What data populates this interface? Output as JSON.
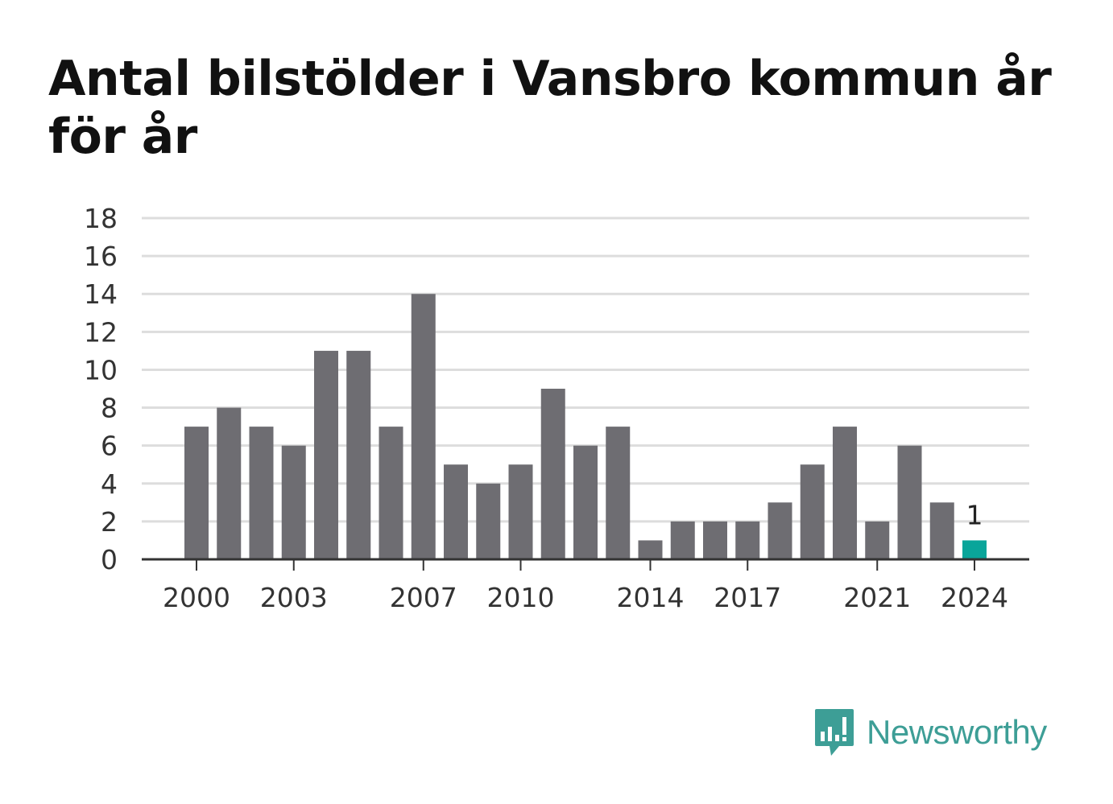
{
  "title": "Antal bilstölder i Vansbro kommun år för år",
  "brand": {
    "name": "Newsworthy",
    "icon": "newsworthy-logo-icon"
  },
  "colors": {
    "bar": "#6e6d72",
    "highlight": "#0aa59a",
    "grid": "#dddddd",
    "axis": "#333333",
    "text": "#333333",
    "brand": "#3d9e96"
  },
  "chart_data": {
    "type": "bar",
    "categories": [
      "2000",
      "2001",
      "2002",
      "2003",
      "2004",
      "2005",
      "2006",
      "2007",
      "2008",
      "2009",
      "2010",
      "2011",
      "2012",
      "2013",
      "2014",
      "2015",
      "2016",
      "2017",
      "2018",
      "2019",
      "2020",
      "2021",
      "2022",
      "2023",
      "2024"
    ],
    "values": [
      7,
      8,
      7,
      6,
      11,
      11,
      7,
      14,
      5,
      4,
      5,
      9,
      6,
      7,
      1,
      2,
      2,
      2,
      3,
      5,
      7,
      2,
      6,
      3,
      1
    ],
    "highlight_index": 24,
    "data_labels": [
      {
        "index": 24,
        "text": "1"
      }
    ],
    "x_tick_labels": [
      "2000",
      "2003",
      "2007",
      "2010",
      "2014",
      "2017",
      "2021",
      "2024"
    ],
    "y_ticks": [
      0,
      2,
      4,
      6,
      8,
      10,
      12,
      14,
      16,
      18
    ],
    "ylim": [
      0,
      18
    ],
    "grid": true,
    "xlabel": "",
    "ylabel": ""
  }
}
